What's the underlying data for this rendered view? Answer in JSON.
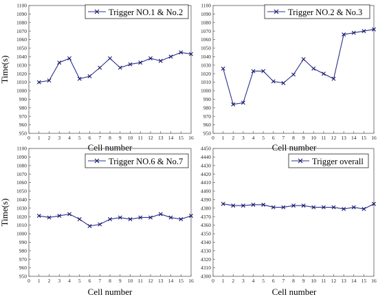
{
  "chart_data": [
    {
      "type": "line",
      "x": [
        1,
        2,
        3,
        4,
        5,
        6,
        7,
        8,
        9,
        10,
        11,
        12,
        13,
        14,
        15,
        16
      ],
      "series": [
        {
          "name": "Trigger NO.1 & No.2",
          "values": [
            1010,
            1012,
            1033,
            1038,
            1014,
            1017,
            1027,
            1038,
            1027,
            1031,
            1033,
            1038,
            1035,
            1040,
            1045,
            1043
          ]
        }
      ],
      "xlabel": "Cell number",
      "ylabel": "Time(s)",
      "xlim": [
        0,
        16
      ],
      "ylim": [
        950,
        1100
      ],
      "ytick_step": 10,
      "legend": "top-right",
      "grid": false
    },
    {
      "type": "line",
      "x": [
        1,
        2,
        3,
        4,
        5,
        6,
        7,
        8,
        9,
        10,
        11,
        12,
        13,
        14,
        15,
        16
      ],
      "series": [
        {
          "name": "Trigger NO.2 & No.3",
          "values": [
            1026,
            984,
            986,
            1023,
            1023,
            1011,
            1009,
            1019,
            1037,
            1026,
            1020,
            1014,
            1066,
            1068,
            1070,
            1072
          ]
        }
      ],
      "xlabel": "Cell number",
      "ylabel": "",
      "xlim": [
        0,
        16
      ],
      "ylim": [
        950,
        1100
      ],
      "ytick_step": 10,
      "legend": "top-right",
      "grid": false
    },
    {
      "type": "line",
      "x": [
        1,
        2,
        3,
        4,
        5,
        6,
        7,
        8,
        9,
        10,
        11,
        12,
        13,
        14,
        15,
        16
      ],
      "series": [
        {
          "name": "Trigger NO.6 & No.7",
          "values": [
            1021,
            1019,
            1021,
            1023,
            1017,
            1009,
            1011,
            1017,
            1019,
            1017,
            1019,
            1019,
            1023,
            1019,
            1017,
            1021
          ]
        }
      ],
      "xlabel": "Cell number",
      "ylabel": "Time(s)",
      "xlim": [
        0,
        16
      ],
      "ylim": [
        950,
        1100
      ],
      "ytick_step": 10,
      "legend": "top-right",
      "grid": false
    },
    {
      "type": "line",
      "x": [
        1,
        2,
        3,
        4,
        5,
        6,
        7,
        8,
        9,
        10,
        11,
        12,
        13,
        14,
        15,
        16
      ],
      "series": [
        {
          "name": "Trigger overall",
          "values": [
            4385,
            4383,
            4383,
            4384,
            4384,
            4381,
            4381,
            4383,
            4383,
            4381,
            4381,
            4381,
            4379,
            4381,
            4379,
            4385
          ]
        }
      ],
      "xlabel": "Cell number",
      "ylabel": "",
      "xlim": [
        0,
        16
      ],
      "ylim": [
        4300,
        4450
      ],
      "ytick_step": 10,
      "legend": "top-right",
      "grid": false
    }
  ]
}
